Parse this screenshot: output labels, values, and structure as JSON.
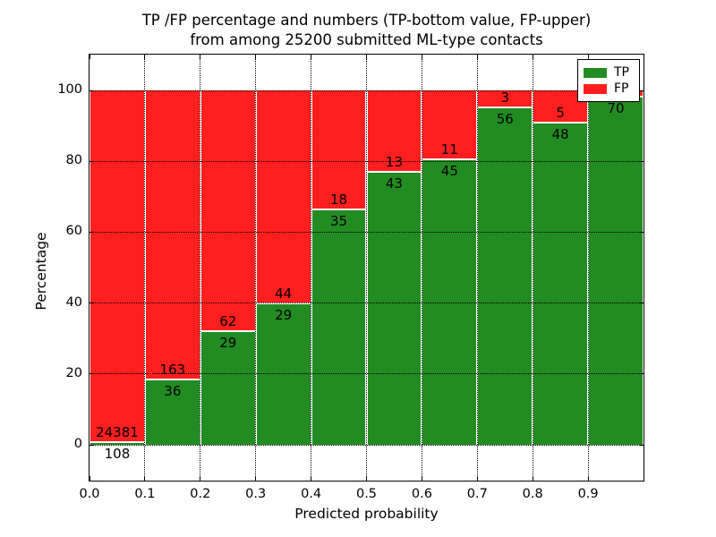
{
  "figure": {
    "title_line1": "TP /FP percentage and numbers (TP-bottom value, FP-upper)",
    "title_line2": "from among 25200 submitted ML-type contacts"
  },
  "axes": {
    "xlabel": "Predicted probability",
    "ylabel": "Percentage",
    "x_tick_labels": [
      "0.0",
      "0.1",
      "0.2",
      "0.3",
      "0.4",
      "0.5",
      "0.6",
      "0.7",
      "0.8",
      "0.9"
    ],
    "y_tick_labels": [
      "0",
      "20",
      "40",
      "60",
      "80",
      "100"
    ]
  },
  "legend": {
    "items": [
      {
        "label": "TP",
        "color": "#228B22"
      },
      {
        "label": "FP",
        "color": "#FF1F1F"
      }
    ]
  },
  "colors": {
    "tp_green": "#228B22",
    "fp_red": "#FF1F1F",
    "grid": "#000000",
    "background": "#FFFFFF",
    "frame": "#000000",
    "bar_edge": "#FFFFFF"
  },
  "chart_data": {
    "type": "bar",
    "stacked": true,
    "normalized_to_percent": true,
    "title": "TP /FP percentage and numbers (TP-bottom value, FP-upper) from among 25200 submitted ML-type contacts",
    "xlabel": "Predicted probability",
    "ylabel": "Percentage",
    "xlim": [
      0.0,
      1.0
    ],
    "ylim": [
      -10,
      110
    ],
    "grid": true,
    "legend_position": "upper right",
    "total_submitted_contacts": 25200,
    "bin_edges": [
      0.0,
      0.1,
      0.2,
      0.3,
      0.4,
      0.5,
      0.6,
      0.7,
      0.8,
      0.9,
      1.0
    ],
    "x_tick_values": [
      0.0,
      0.1,
      0.2,
      0.3,
      0.4,
      0.5,
      0.6,
      0.7,
      0.8,
      0.9
    ],
    "y_tick_values": [
      0,
      20,
      40,
      60,
      80,
      100
    ],
    "series": [
      {
        "name": "TP",
        "color": "#228B22",
        "counts": [
          108,
          36,
          29,
          29,
          35,
          43,
          45,
          56,
          48,
          70
        ]
      },
      {
        "name": "FP",
        "color": "#FF1F1F",
        "counts": [
          24381,
          163,
          62,
          44,
          18,
          13,
          11,
          3,
          5,
          null
        ]
      }
    ],
    "tp_percent": [
      0.44,
      18.09,
      31.87,
      39.73,
      66.04,
      76.79,
      80.36,
      94.92,
      90.57,
      98.0
    ],
    "tp_labels": [
      "108",
      "36",
      "29",
      "29",
      "35",
      "43",
      "45",
      "56",
      "48",
      "70"
    ],
    "fp_labels": [
      "24381",
      "163",
      "62",
      "44",
      "18",
      "13",
      "11",
      "3",
      "5",
      ""
    ]
  }
}
